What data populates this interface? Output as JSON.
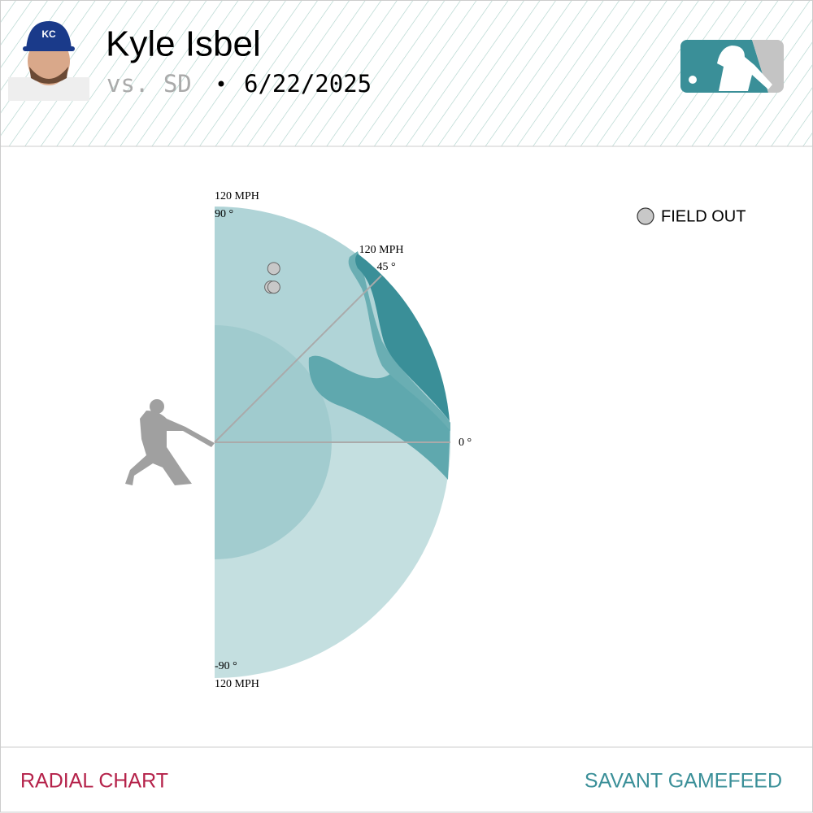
{
  "header": {
    "player": "Kyle Isbel",
    "opponent": "vs. SD",
    "separator": "•",
    "date": "6/22/2025"
  },
  "chart_data": {
    "type": "radial",
    "rlim": [
      0,
      120
    ],
    "rticks": [
      {
        "value": 120,
        "label": "120 MPH"
      }
    ],
    "angle_ticks": [
      {
        "value": 90,
        "label": "90 °"
      },
      {
        "value": 45,
        "label": "45 °"
      },
      {
        "value": 0,
        "label": "0 °"
      },
      {
        "value": -90,
        "label": "-90 °"
      }
    ],
    "series": [
      {
        "name": "FIELD OUT",
        "color": "#c8c8c8",
        "values": [
          93.4,
          84.0,
          84.5
        ],
        "angles": [
          71.2,
          70.1,
          69.1
        ]
      }
    ]
  },
  "footer": {
    "left": "RADIAL CHART",
    "right": "SAVANT GAMEFEED"
  }
}
